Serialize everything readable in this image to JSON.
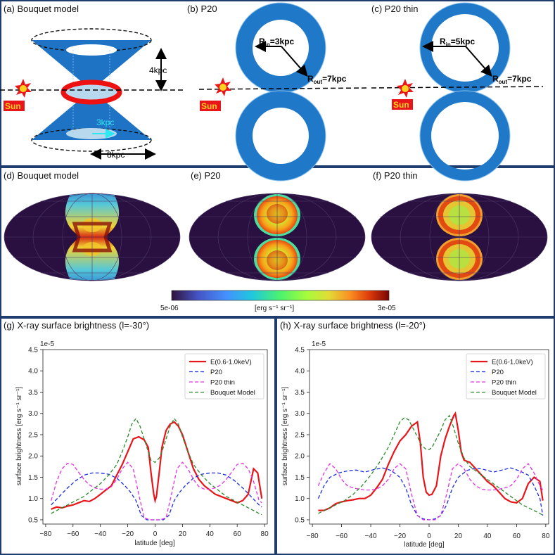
{
  "top": {
    "a": {
      "title": "(a) Bouquet model",
      "sun": "Sun",
      "height_label": "4kpc",
      "inner_label": "3kpc",
      "width_label": "8kpc"
    },
    "b": {
      "title": "(b) P20",
      "sun": "Sun",
      "rin_label": "R",
      "rin_sub": "in",
      "rin_value": "=3kpc",
      "rout_label": "R",
      "rout_sub": "out",
      "rout_value": "=7kpc"
    },
    "c": {
      "title": "(c) P20 thin",
      "sun": "Sun",
      "rin_label": "R",
      "rin_sub": "in",
      "rin_value": "=5kpc",
      "rout_label": "R",
      "rout_sub": "out",
      "rout_value": "=7kpc"
    }
  },
  "maps": {
    "d_title": "(d) Bouquet model",
    "e_title": "(e) P20",
    "f_title": "(f) P20 thin",
    "colorbar": {
      "min_label": "5e-06",
      "max_label": "3e-05",
      "unit_label": "[erg s⁻¹ sr⁻¹]"
    }
  },
  "colors": {
    "observed": "#e8151b",
    "p20": "#1a2ce0",
    "p20_thin": "#e531e5",
    "bouquet": "#2a8a2a",
    "frame": "#1f3c6e",
    "cone": "#1f73c4",
    "ring": "#1f78c8"
  },
  "chart_data": [
    {
      "type": "line",
      "title": "(g) X-ray surface brightness (l=-30°)",
      "xlabel": "latitude [deg]",
      "ylabel": "surface brightness [erg s⁻¹ sr⁻¹]",
      "scale_label": "1e-5",
      "xlim": [
        -82,
        82
      ],
      "ylim": [
        0.4,
        4.5
      ],
      "xticks": [
        -80,
        -60,
        -40,
        -20,
        0,
        20,
        40,
        60,
        80
      ],
      "yticks": [
        0.5,
        1.0,
        1.5,
        2.0,
        2.5,
        3.0,
        3.5,
        4.0,
        4.5
      ],
      "legend_position": "top-right",
      "series": [
        {
          "name": "E(0.6-1.0keV)",
          "color": "#e8151b",
          "style": "solid",
          "x": [
            -76,
            -72,
            -68,
            -64,
            -60,
            -56,
            -52,
            -48,
            -44,
            -40,
            -36,
            -32,
            -28,
            -24,
            -20,
            -16,
            -12,
            -8,
            -5,
            -3,
            -1,
            0,
            1,
            3,
            5,
            8,
            11,
            14,
            17,
            20,
            24,
            28,
            32,
            36,
            40,
            44,
            48,
            52,
            56,
            60,
            64,
            68,
            72,
            75,
            78
          ],
          "y": [
            0.75,
            0.8,
            0.78,
            0.82,
            0.85,
            0.9,
            0.95,
            0.93,
            1.0,
            1.1,
            1.2,
            1.3,
            1.55,
            1.8,
            2.1,
            2.4,
            2.45,
            2.38,
            2.2,
            1.6,
            1.1,
            0.95,
            1.05,
            1.6,
            2.2,
            2.6,
            2.75,
            2.8,
            2.7,
            2.5,
            2.1,
            1.7,
            1.45,
            1.3,
            1.2,
            1.1,
            1.05,
            1.0,
            0.95,
            0.9,
            0.95,
            1.1,
            1.7,
            1.6,
            1.0
          ]
        },
        {
          "name": "P20",
          "color": "#1a2ce0",
          "style": "dashed",
          "x": [
            -76,
            -70,
            -64,
            -58,
            -52,
            -46,
            -40,
            -34,
            -28,
            -22,
            -18,
            -14,
            -10,
            -6,
            -2,
            0,
            2,
            6,
            10,
            14,
            18,
            22,
            28,
            34,
            40,
            46,
            52,
            58,
            64,
            70,
            76,
            78
          ],
          "y": [
            0.85,
            1.05,
            1.25,
            1.42,
            1.55,
            1.6,
            1.6,
            1.57,
            1.48,
            1.3,
            1.15,
            0.95,
            0.6,
            0.5,
            0.5,
            0.5,
            0.5,
            0.5,
            0.6,
            0.95,
            1.15,
            1.3,
            1.48,
            1.57,
            1.6,
            1.6,
            1.55,
            1.42,
            1.25,
            1.05,
            0.85,
            0.8
          ]
        },
        {
          "name": "P20 thin",
          "color": "#e531e5",
          "style": "dashed",
          "x": [
            -76,
            -72,
            -68,
            -64,
            -60,
            -56,
            -52,
            -48,
            -44,
            -40,
            -36,
            -32,
            -28,
            -24,
            -20,
            -16,
            -12,
            -8,
            -4,
            0,
            4,
            8,
            12,
            16,
            20,
            24,
            28,
            32,
            36,
            40,
            44,
            48,
            52,
            56,
            60,
            64,
            68,
            72,
            76,
            78
          ],
          "y": [
            0.95,
            1.4,
            1.7,
            1.83,
            1.8,
            1.62,
            1.45,
            1.32,
            1.25,
            1.22,
            1.22,
            1.28,
            1.45,
            1.7,
            1.85,
            1.7,
            1.1,
            0.55,
            0.5,
            0.5,
            0.5,
            0.55,
            1.1,
            1.7,
            1.85,
            1.7,
            1.45,
            1.28,
            1.22,
            1.22,
            1.25,
            1.32,
            1.45,
            1.62,
            1.8,
            1.83,
            1.7,
            1.4,
            0.95,
            0.9
          ]
        },
        {
          "name": "Bouquet Model",
          "color": "#2a8a2a",
          "style": "dashed",
          "x": [
            -76,
            -70,
            -64,
            -58,
            -52,
            -46,
            -40,
            -34,
            -28,
            -24,
            -20,
            -17,
            -14,
            -11,
            -8,
            -5,
            -3,
            0,
            3,
            5,
            8,
            11,
            14,
            17,
            20,
            24,
            28,
            34,
            40,
            46,
            52,
            58,
            64,
            70,
            76,
            78
          ],
          "y": [
            0.65,
            0.75,
            0.85,
            0.95,
            1.05,
            1.2,
            1.35,
            1.55,
            1.8,
            2.1,
            2.45,
            2.75,
            2.88,
            2.7,
            2.4,
            2.1,
            1.9,
            1.85,
            1.95,
            2.1,
            2.4,
            2.7,
            2.88,
            2.75,
            2.45,
            2.1,
            1.8,
            1.55,
            1.35,
            1.2,
            1.05,
            0.95,
            0.85,
            0.75,
            0.65,
            0.62
          ]
        }
      ]
    },
    {
      "type": "line",
      "title": "(h) X-ray surface brightness (l=-20°)",
      "xlabel": "latitude [deg]",
      "ylabel": "surface brightness [erg s⁻¹ sr⁻¹]",
      "scale_label": "1e-5",
      "xlim": [
        -82,
        82
      ],
      "ylim": [
        0.4,
        4.5
      ],
      "xticks": [
        -80,
        -60,
        -40,
        -20,
        0,
        20,
        40,
        60,
        80
      ],
      "yticks": [
        0.5,
        1.0,
        1.5,
        2.0,
        2.5,
        3.0,
        3.5,
        4.0,
        4.5
      ],
      "legend_position": "top-right",
      "series": [
        {
          "name": "E(0.6-1.0keV)",
          "color": "#e8151b",
          "style": "solid",
          "x": [
            -76,
            -72,
            -68,
            -64,
            -60,
            -56,
            -52,
            -48,
            -44,
            -40,
            -36,
            -32,
            -28,
            -24,
            -20,
            -16,
            -12,
            -8,
            -6,
            -4,
            -2,
            0,
            2,
            5,
            8,
            11,
            14,
            17,
            18,
            20,
            22,
            24,
            28,
            32,
            36,
            40,
            44,
            48,
            52,
            56,
            60,
            64,
            68,
            72,
            76,
            78
          ],
          "y": [
            0.72,
            0.72,
            0.78,
            0.88,
            0.92,
            0.95,
            0.97,
            1.0,
            1.0,
            1.08,
            1.25,
            1.45,
            1.8,
            2.1,
            2.35,
            2.5,
            2.7,
            2.8,
            2.3,
            1.5,
            1.15,
            1.08,
            1.1,
            1.3,
            2.0,
            2.4,
            2.7,
            2.95,
            3.0,
            2.6,
            2.1,
            1.9,
            1.85,
            1.7,
            1.55,
            1.4,
            1.3,
            1.15,
            1.0,
            0.92,
            0.9,
            1.0,
            1.35,
            1.5,
            1.4,
            0.95
          ]
        },
        {
          "name": "P20",
          "color": "#1a2ce0",
          "style": "dashed",
          "x": [
            -76,
            -72,
            -68,
            -62,
            -56,
            -50,
            -44,
            -38,
            -32,
            -26,
            -20,
            -16,
            -12,
            -8,
            -4,
            0,
            4,
            8,
            12,
            16,
            20,
            26,
            32,
            38,
            44,
            50,
            56,
            62,
            68,
            72,
            76,
            78
          ],
          "y": [
            1.0,
            1.3,
            1.5,
            1.6,
            1.65,
            1.67,
            1.62,
            1.68,
            1.72,
            1.66,
            1.5,
            1.25,
            0.85,
            0.6,
            0.52,
            0.5,
            0.52,
            0.6,
            0.85,
            1.25,
            1.5,
            1.66,
            1.72,
            1.68,
            1.62,
            1.67,
            1.72,
            1.65,
            1.55,
            1.3,
            1.0,
            0.6
          ]
        },
        {
          "name": "P20 thin",
          "color": "#e531e5",
          "style": "dashed",
          "x": [
            -76,
            -72,
            -68,
            -64,
            -60,
            -56,
            -52,
            -48,
            -44,
            -40,
            -36,
            -32,
            -28,
            -24,
            -20,
            -16,
            -12,
            -8,
            -4,
            0,
            4,
            8,
            12,
            16,
            20,
            24,
            28,
            32,
            36,
            40,
            44,
            48,
            52,
            56,
            60,
            64,
            68,
            72,
            76,
            78
          ],
          "y": [
            1.3,
            1.6,
            1.82,
            1.7,
            1.45,
            1.3,
            1.25,
            1.22,
            1.2,
            1.2,
            1.22,
            1.3,
            1.45,
            1.7,
            1.82,
            1.7,
            1.1,
            0.6,
            0.5,
            0.5,
            0.5,
            0.6,
            1.1,
            1.7,
            1.82,
            1.7,
            1.45,
            1.3,
            1.22,
            1.2,
            1.2,
            1.22,
            1.25,
            1.3,
            1.45,
            1.7,
            1.82,
            1.6,
            1.3,
            1.2
          ]
        },
        {
          "name": "Bouquet Model",
          "color": "#2a8a2a",
          "style": "dashed",
          "x": [
            -76,
            -70,
            -64,
            -58,
            -52,
            -46,
            -40,
            -34,
            -28,
            -24,
            -20,
            -17,
            -14,
            -11,
            -8,
            -5,
            -2,
            0,
            2,
            5,
            8,
            11,
            14,
            17,
            20,
            24,
            28,
            34,
            40,
            46,
            52,
            58,
            64,
            70,
            76,
            78
          ],
          "y": [
            0.65,
            0.75,
            0.85,
            0.95,
            1.1,
            1.3,
            1.55,
            1.85,
            2.2,
            2.5,
            2.8,
            2.9,
            2.85,
            2.65,
            2.45,
            2.25,
            2.15,
            2.15,
            2.2,
            2.4,
            2.6,
            2.85,
            2.95,
            2.65,
            2.3,
            1.95,
            1.75,
            1.6,
            1.45,
            1.3,
            1.15,
            1.0,
            0.85,
            0.75,
            0.65,
            0.6
          ]
        }
      ]
    }
  ]
}
